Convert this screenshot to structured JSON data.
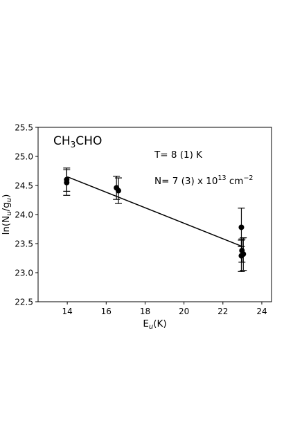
{
  "chart_data": {
    "type": "scatter",
    "xlim": [
      12.5,
      24.5
    ],
    "ylim": [
      22.5,
      25.5
    ],
    "x_ticks": [
      14,
      16,
      18,
      20,
      22,
      24
    ],
    "y_ticks": [
      22.5,
      23.0,
      23.5,
      24.0,
      24.5,
      25.0,
      25.5
    ],
    "x_tick_labels": [
      "14",
      "16",
      "18",
      "20",
      "22",
      "24"
    ],
    "y_tick_labels": [
      "22.5",
      "23.0",
      "23.5",
      "24.0",
      "24.5",
      "25.0",
      "25.5"
    ],
    "xlabel": {
      "base": "E",
      "sub": "u",
      "suffix": "(K)"
    },
    "ylabel": {
      "p1": "ln(N",
      "sub1": "u",
      "p2": "/g",
      "sub2": "u",
      "p3": ")"
    },
    "grid": false,
    "legend": "none",
    "points": [
      {
        "x": 13.97,
        "y": 24.55,
        "err": 0.22
      },
      {
        "x": 13.97,
        "y": 24.6,
        "err": 0.2
      },
      {
        "x": 16.53,
        "y": 24.46,
        "err": 0.2
      },
      {
        "x": 16.63,
        "y": 24.41,
        "err": 0.22
      },
      {
        "x": 22.95,
        "y": 23.78,
        "err": 0.33
      },
      {
        "x": 22.98,
        "y": 23.38,
        "err": 0.2
      },
      {
        "x": 22.95,
        "y": 23.29,
        "err": 0.27
      },
      {
        "x": 23.05,
        "y": 23.32,
        "err": 0.28
      }
    ],
    "fit_line": {
      "x1": 14.0,
      "y1": 24.65,
      "x2": 23.0,
      "y2": 23.45
    },
    "annotations": {
      "molecule": {
        "p1": "CH",
        "sub": "3",
        "p2": "CHO"
      },
      "temperature": "T= 8 (1) K",
      "column_density": {
        "p1": "N= 7 (3) x 10",
        "sup1": "13",
        "p2": " cm",
        "sup2": "−2"
      }
    }
  },
  "colors": {
    "marker": "#000000",
    "line": "#000000",
    "axes": "#000000",
    "background": "#ffffff"
  }
}
